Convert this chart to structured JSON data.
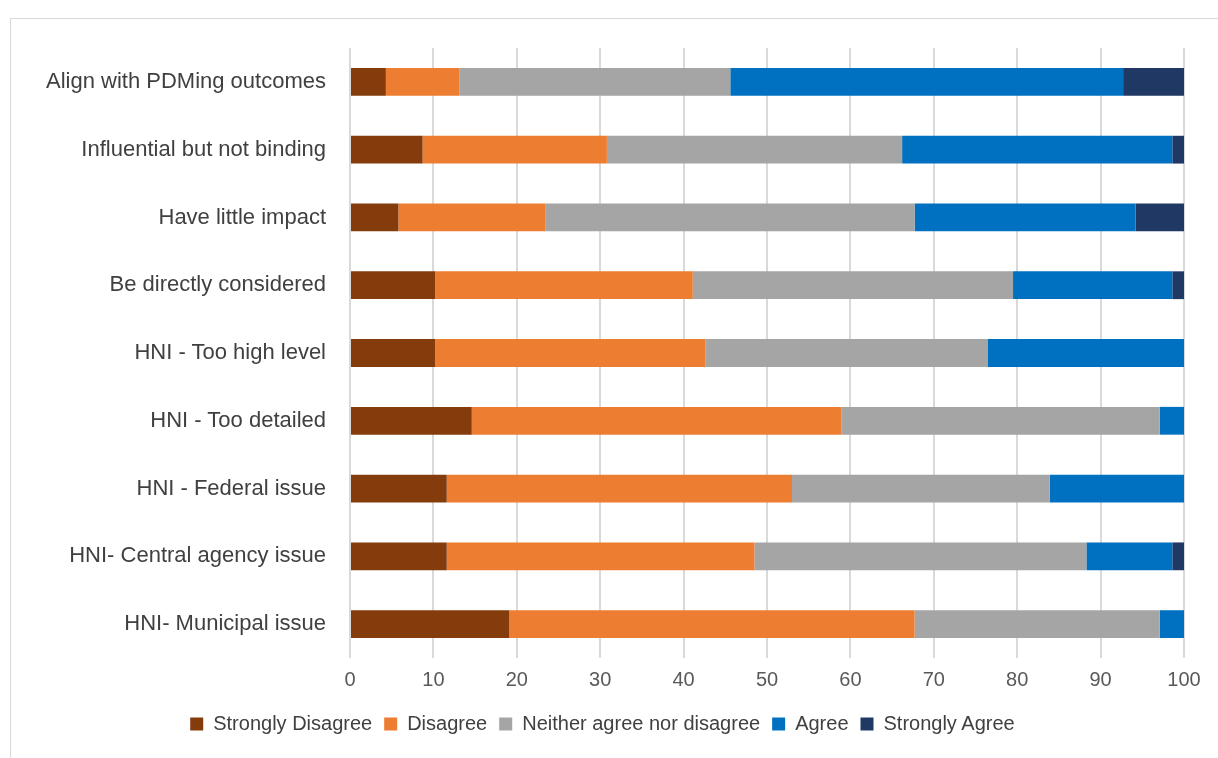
{
  "chart_data": {
    "type": "bar",
    "orientation": "horizontal",
    "stacked": true,
    "categories": [
      "Align with PDMing outcomes",
      "Influential but not binding",
      "Have little impact",
      "Be directly considered",
      "HNI - Too high level",
      "HNI - Too detailed",
      "HNI - Federal issue",
      "HNI- Central agency issue",
      "HNI- Municipal issue"
    ],
    "series": [
      {
        "name": "Strongly Disagree",
        "color": "#843c0c",
        "values": [
          4.3,
          8.7,
          5.8,
          10.2,
          10.2,
          14.6,
          11.6,
          11.6,
          19.1
        ]
      },
      {
        "name": "Disagree",
        "color": "#ed7d31",
        "values": [
          8.8,
          22.1,
          17.6,
          30.9,
          32.4,
          44.3,
          41.4,
          36.9,
          48.6
        ]
      },
      {
        "name": "Neither agree nor disagree",
        "color": "#a5a5a5",
        "values": [
          32.5,
          35.4,
          44.3,
          38.4,
          33.9,
          38.2,
          30.9,
          39.8,
          29.4
        ]
      },
      {
        "name": "Agree",
        "color": "#0070c0",
        "values": [
          47.1,
          32.4,
          26.5,
          19.1,
          23.5,
          2.9,
          16.1,
          10.3,
          2.9
        ]
      },
      {
        "name": "Strongly Agree",
        "color": "#203864",
        "values": [
          7.3,
          1.4,
          5.8,
          1.4,
          0,
          0,
          0,
          1.4,
          0
        ]
      }
    ],
    "xlim": [
      0,
      100
    ],
    "xticks": [
      0,
      10,
      20,
      30,
      40,
      50,
      60,
      70,
      80,
      90,
      100
    ],
    "grid": "x",
    "legend": "bottom"
  }
}
